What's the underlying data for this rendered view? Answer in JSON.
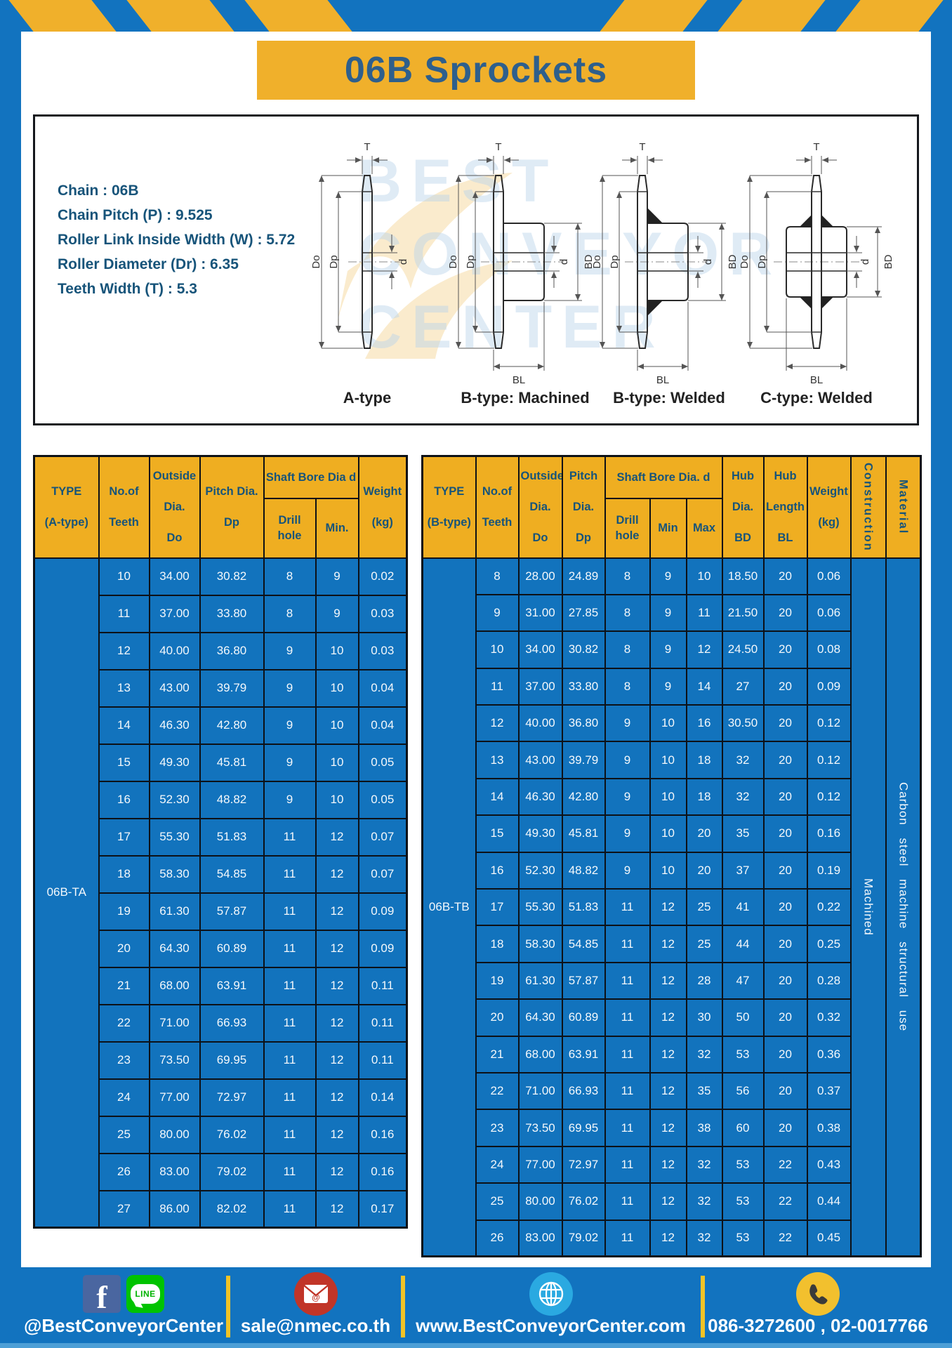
{
  "page": {
    "title": "06B Sprockets"
  },
  "specs": {
    "lines": [
      "Chain  : 06B",
      "Chain Pitch (P)  :  9.525",
      "Roller Link Inside Width (W)  :  5.72",
      "Roller Diameter (Dr)  : 6.35",
      "Teeth Width (T)  :  5.3"
    ]
  },
  "watermark": {
    "lines": [
      "BEST",
      "CONVEYOR",
      "CENTER"
    ]
  },
  "diagrams": {
    "items": [
      {
        "label": "A-type",
        "dims": {
          "T": "T",
          "Do": "Do",
          "Dp": "Dp",
          "d": "d"
        }
      },
      {
        "label": "B-type: Machined",
        "dims": {
          "T": "T",
          "Do": "Do",
          "Dp": "Dp",
          "d": "d",
          "BD": "BD",
          "BL": "BL"
        }
      },
      {
        "label": "B-type: Welded",
        "dims": {
          "T": "T",
          "Do": "Do",
          "Dp": "Dp",
          "d": "d",
          "BD": "BD",
          "BL": "BL"
        }
      },
      {
        "label": "C-type: Welded",
        "dims": {
          "T": "T",
          "Do": "Do",
          "Dp": "Dp",
          "d": "d",
          "BD": "BD",
          "BL": "BL"
        }
      }
    ]
  },
  "table_a": {
    "headers": {
      "type": "TYPE\n\n(A-type)",
      "teeth": "No.of\n\nTeeth",
      "outside": "Outside\n\nDia.\n\nDo",
      "pitch": "Pitch Dia.\n\nDp",
      "shaft_bore": "Shaft Bore Dia d",
      "drill": "Drill hole",
      "min": "Min.",
      "weight": "Weight\n\n(kg)"
    },
    "type_value": "06B-TA",
    "rows": [
      [
        "10",
        "34.00",
        "30.82",
        "8",
        "9",
        "0.02"
      ],
      [
        "11",
        "37.00",
        "33.80",
        "8",
        "9",
        "0.03"
      ],
      [
        "12",
        "40.00",
        "36.80",
        "9",
        "10",
        "0.03"
      ],
      [
        "13",
        "43.00",
        "39.79",
        "9",
        "10",
        "0.04"
      ],
      [
        "14",
        "46.30",
        "42.80",
        "9",
        "10",
        "0.04"
      ],
      [
        "15",
        "49.30",
        "45.81",
        "9",
        "10",
        "0.05"
      ],
      [
        "16",
        "52.30",
        "48.82",
        "9",
        "10",
        "0.05"
      ],
      [
        "17",
        "55.30",
        "51.83",
        "11",
        "12",
        "0.07"
      ],
      [
        "18",
        "58.30",
        "54.85",
        "11",
        "12",
        "0.07"
      ],
      [
        "19",
        "61.30",
        "57.87",
        "11",
        "12",
        "0.09"
      ],
      [
        "20",
        "64.30",
        "60.89",
        "11",
        "12",
        "0.09"
      ],
      [
        "21",
        "68.00",
        "63.91",
        "11",
        "12",
        "0.11"
      ],
      [
        "22",
        "71.00",
        "66.93",
        "11",
        "12",
        "0.11"
      ],
      [
        "23",
        "73.50",
        "69.95",
        "11",
        "12",
        "0.11"
      ],
      [
        "24",
        "77.00",
        "72.97",
        "11",
        "12",
        "0.14"
      ],
      [
        "25",
        "80.00",
        "76.02",
        "11",
        "12",
        "0.16"
      ],
      [
        "26",
        "83.00",
        "79.02",
        "11",
        "12",
        "0.16"
      ],
      [
        "27",
        "86.00",
        "82.02",
        "11",
        "12",
        "0.17"
      ]
    ]
  },
  "table_b": {
    "headers": {
      "type": "TYPE\n\n(B-type)",
      "teeth": "No.of\n\nTeeth",
      "outside": "Outside\n\nDia.\n\nDo",
      "pitch": "Pitch\n\nDia.\n\nDp",
      "shaft_bore": "Shaft Bore Dia.  d",
      "drill": "Drill hole",
      "min": "Min",
      "max": "Max",
      "hub_dia": "Hub\n\nDia.\n\nBD",
      "hub_len": "Hub\n\nLength\n\nBL",
      "weight": "Weight\n\n(kg)",
      "construction": "Construction",
      "material": "Material"
    },
    "type_value": "06B-TB",
    "construction_value": "Machined",
    "material_value": "Carbon steel machine structural use",
    "rows": [
      [
        "8",
        "28.00",
        "24.89",
        "8",
        "9",
        "10",
        "18.50",
        "20",
        "0.06"
      ],
      [
        "9",
        "31.00",
        "27.85",
        "8",
        "9",
        "11",
        "21.50",
        "20",
        "0.06"
      ],
      [
        "10",
        "34.00",
        "30.82",
        "8",
        "9",
        "12",
        "24.50",
        "20",
        "0.08"
      ],
      [
        "11",
        "37.00",
        "33.80",
        "8",
        "9",
        "14",
        "27",
        "20",
        "0.09"
      ],
      [
        "12",
        "40.00",
        "36.80",
        "9",
        "10",
        "16",
        "30.50",
        "20",
        "0.12"
      ],
      [
        "13",
        "43.00",
        "39.79",
        "9",
        "10",
        "18",
        "32",
        "20",
        "0.12"
      ],
      [
        "14",
        "46.30",
        "42.80",
        "9",
        "10",
        "18",
        "32",
        "20",
        "0.12"
      ],
      [
        "15",
        "49.30",
        "45.81",
        "9",
        "10",
        "20",
        "35",
        "20",
        "0.16"
      ],
      [
        "16",
        "52.30",
        "48.82",
        "9",
        "10",
        "20",
        "37",
        "20",
        "0.19"
      ],
      [
        "17",
        "55.30",
        "51.83",
        "11",
        "12",
        "25",
        "41",
        "20",
        "0.22"
      ],
      [
        "18",
        "58.30",
        "54.85",
        "11",
        "12",
        "25",
        "44",
        "20",
        "0.25"
      ],
      [
        "19",
        "61.30",
        "57.87",
        "11",
        "12",
        "28",
        "47",
        "20",
        "0.28"
      ],
      [
        "20",
        "64.30",
        "60.89",
        "11",
        "12",
        "30",
        "50",
        "20",
        "0.32"
      ],
      [
        "21",
        "68.00",
        "63.91",
        "11",
        "12",
        "32",
        "53",
        "20",
        "0.36"
      ],
      [
        "22",
        "71.00",
        "66.93",
        "11",
        "12",
        "35",
        "56",
        "20",
        "0.37"
      ],
      [
        "23",
        "73.50",
        "69.95",
        "11",
        "12",
        "38",
        "60",
        "20",
        "0.38"
      ],
      [
        "24",
        "77.00",
        "72.97",
        "11",
        "12",
        "32",
        "53",
        "22",
        "0.43"
      ],
      [
        "25",
        "80.00",
        "76.02",
        "11",
        "12",
        "32",
        "53",
        "22",
        "0.44"
      ],
      [
        "26",
        "83.00",
        "79.02",
        "11",
        "12",
        "32",
        "53",
        "22",
        "0.45"
      ]
    ]
  },
  "footer": {
    "line_badge": "LINE",
    "items": [
      {
        "label": "@BestConveyorCenter"
      },
      {
        "label": "sale@nmec.co.th"
      },
      {
        "label": "www.BestConveyorCenter.com"
      },
      {
        "label": "086-3272600 , 02-0017766"
      }
    ]
  },
  "colors": {
    "frame_blue": "#1273BF",
    "cell_blue": "#1273BD",
    "accent_yellow": "#F0B02B",
    "header_yellow": "#EFAE21",
    "header_text": "#17547A",
    "title_text": "#2E5F8C",
    "facebook_blue": "#4A66A0",
    "line_green": "#00C300",
    "email_red": "#C13528",
    "globe_blue": "#2AA9E1",
    "phone_yellow": "#F2C02E"
  }
}
